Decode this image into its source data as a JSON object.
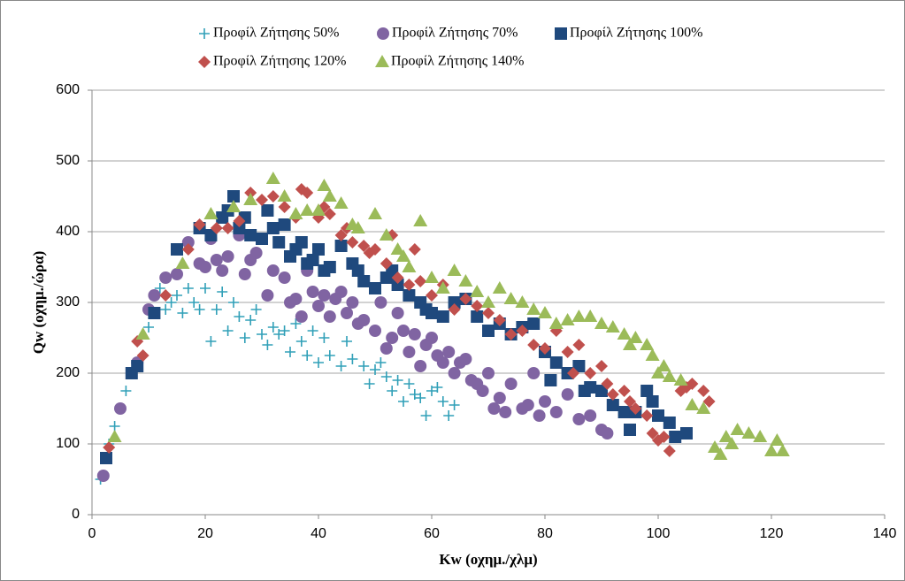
{
  "chart_data": {
    "type": "scatter",
    "x_label": "Kw (οχημ./χλμ)",
    "y_label": "Qw (οχημ./ώρα)",
    "xlim": [
      0,
      140
    ],
    "xticks": [
      0,
      20,
      40,
      60,
      80,
      100,
      120,
      140
    ],
    "ylim": [
      0,
      600
    ],
    "yticks": [
      0,
      100,
      200,
      300,
      400,
      500,
      600
    ],
    "grid": true,
    "legend": "top",
    "series": [
      {
        "name": "Προφίλ Ζήτησης 50%",
        "color": "#31a0b8",
        "marker": "plus",
        "x": [
          1.5,
          3,
          4,
          6,
          8,
          10,
          12,
          13,
          14,
          15,
          16,
          17,
          18,
          19,
          20,
          21,
          22,
          23,
          24,
          25,
          26,
          27,
          28,
          29,
          30,
          31,
          32,
          33,
          34,
          35,
          36,
          37,
          38,
          39,
          40,
          41,
          42,
          44,
          45,
          46,
          48,
          49,
          50,
          51,
          52,
          53,
          54,
          55,
          56,
          57,
          58,
          59,
          60,
          61,
          62,
          63,
          64
        ],
        "values": [
          50,
          100,
          125,
          175,
          215,
          265,
          320,
          290,
          300,
          310,
          285,
          320,
          300,
          290,
          320,
          245,
          290,
          315,
          260,
          300,
          280,
          250,
          275,
          290,
          255,
          240,
          265,
          255,
          260,
          230,
          270,
          245,
          225,
          260,
          215,
          250,
          225,
          210,
          245,
          220,
          210,
          185,
          205,
          215,
          195,
          175,
          190,
          160,
          185,
          170,
          165,
          140,
          175,
          180,
          160,
          140,
          155
        ]
      },
      {
        "name": "Προφίλ Ζήτησης 70%",
        "color": "#8064a2",
        "marker": "circle",
        "x": [
          2,
          5,
          8,
          10,
          11,
          13,
          15,
          17,
          19,
          20,
          21,
          22,
          23,
          24,
          26,
          27,
          28,
          29,
          30,
          31,
          32,
          34,
          35,
          36,
          37,
          38,
          39,
          40,
          41,
          42,
          43,
          44,
          45,
          46,
          47,
          48,
          50,
          51,
          52,
          53,
          54,
          55,
          56,
          57,
          58,
          59,
          60,
          61,
          62,
          63,
          64,
          65,
          66,
          67,
          68,
          69,
          70,
          71,
          72,
          73,
          74,
          76,
          77,
          78,
          79,
          80,
          82,
          84,
          86,
          88,
          90,
          91
        ],
        "values": [
          55,
          150,
          215,
          290,
          310,
          335,
          340,
          385,
          355,
          350,
          390,
          360,
          345,
          365,
          395,
          340,
          360,
          370,
          390,
          310,
          345,
          335,
          300,
          305,
          280,
          345,
          315,
          295,
          310,
          280,
          305,
          315,
          285,
          300,
          270,
          275,
          260,
          300,
          235,
          250,
          285,
          260,
          230,
          255,
          210,
          240,
          250,
          225,
          215,
          230,
          200,
          215,
          220,
          190,
          185,
          175,
          200,
          150,
          165,
          145,
          185,
          150,
          155,
          200,
          140,
          160,
          145,
          170,
          135,
          140,
          120,
          115
        ]
      },
      {
        "name": "Προφίλ Ζήτησης 100%",
        "color": "#1f497d",
        "marker": "square",
        "x": [
          2.5,
          7,
          8,
          11,
          15,
          19,
          21,
          23,
          24,
          25,
          26,
          27,
          28,
          30,
          31,
          32,
          33,
          34,
          35,
          36,
          37,
          38,
          39,
          40,
          41,
          42,
          44,
          46,
          47,
          48,
          50,
          52,
          53,
          54,
          56,
          58,
          59,
          60,
          62,
          64,
          66,
          68,
          70,
          72,
          74,
          76,
          78,
          80,
          81,
          82,
          84,
          86,
          87,
          88,
          90,
          92,
          94,
          95,
          96,
          98,
          99,
          100,
          102,
          103,
          105
        ],
        "values": [
          80,
          200,
          210,
          285,
          375,
          405,
          395,
          420,
          430,
          450,
          405,
          420,
          395,
          390,
          430,
          405,
          385,
          410,
          365,
          375,
          385,
          355,
          360,
          375,
          345,
          350,
          380,
          355,
          345,
          330,
          320,
          335,
          345,
          325,
          310,
          300,
          290,
          285,
          280,
          300,
          305,
          280,
          260,
          270,
          255,
          265,
          270,
          230,
          190,
          215,
          200,
          210,
          175,
          180,
          175,
          155,
          145,
          120,
          145,
          175,
          160,
          140,
          130,
          110,
          115
        ]
      },
      {
        "name": "Προφίλ Ζήτησης 120%",
        "color": "#c0504d",
        "marker": "diamond",
        "x": [
          3,
          8,
          9,
          13,
          17,
          19,
          22,
          24,
          26,
          28,
          30,
          32,
          34,
          36,
          37,
          38,
          40,
          41,
          42,
          44,
          45,
          46,
          48,
          49,
          50,
          52,
          53,
          54,
          56,
          57,
          58,
          60,
          62,
          64,
          66,
          68,
          70,
          72,
          74,
          76,
          78,
          80,
          82,
          84,
          85,
          86,
          88,
          90,
          91,
          92,
          94,
          95,
          96,
          98,
          99,
          100,
          101,
          102,
          104,
          105,
          106,
          108,
          109
        ],
        "values": [
          95,
          245,
          225,
          310,
          375,
          410,
          405,
          405,
          415,
          455,
          445,
          450,
          435,
          420,
          460,
          455,
          420,
          435,
          425,
          395,
          405,
          385,
          380,
          370,
          375,
          355,
          395,
          335,
          325,
          375,
          330,
          310,
          325,
          290,
          305,
          295,
          285,
          275,
          255,
          260,
          240,
          235,
          260,
          230,
          200,
          240,
          200,
          210,
          185,
          170,
          175,
          160,
          150,
          140,
          115,
          105,
          110,
          90,
          175,
          180,
          185,
          175,
          160
        ]
      },
      {
        "name": "Προφίλ Ζήτησης 140%",
        "color": "#9bbb59",
        "marker": "triangle",
        "x": [
          4,
          9,
          16,
          21,
          25,
          28,
          32,
          34,
          36,
          38,
          40,
          41,
          42,
          44,
          46,
          47,
          50,
          52,
          54,
          55,
          56,
          58,
          60,
          62,
          64,
          66,
          68,
          70,
          72,
          74,
          76,
          78,
          80,
          82,
          84,
          86,
          88,
          90,
          92,
          94,
          95,
          96,
          98,
          99,
          100,
          101,
          102,
          104,
          106,
          108,
          110,
          111,
          112,
          113,
          114,
          116,
          118,
          120,
          121,
          122
        ],
        "values": [
          110,
          255,
          355,
          425,
          435,
          445,
          475,
          450,
          425,
          430,
          430,
          465,
          450,
          440,
          410,
          405,
          425,
          395,
          375,
          365,
          350,
          415,
          335,
          320,
          345,
          330,
          315,
          300,
          320,
          305,
          300,
          290,
          285,
          270,
          275,
          280,
          280,
          270,
          265,
          255,
          240,
          250,
          240,
          225,
          200,
          210,
          195,
          190,
          155,
          150,
          95,
          85,
          110,
          100,
          120,
          115,
          110,
          90,
          105,
          90
        ]
      }
    ]
  }
}
